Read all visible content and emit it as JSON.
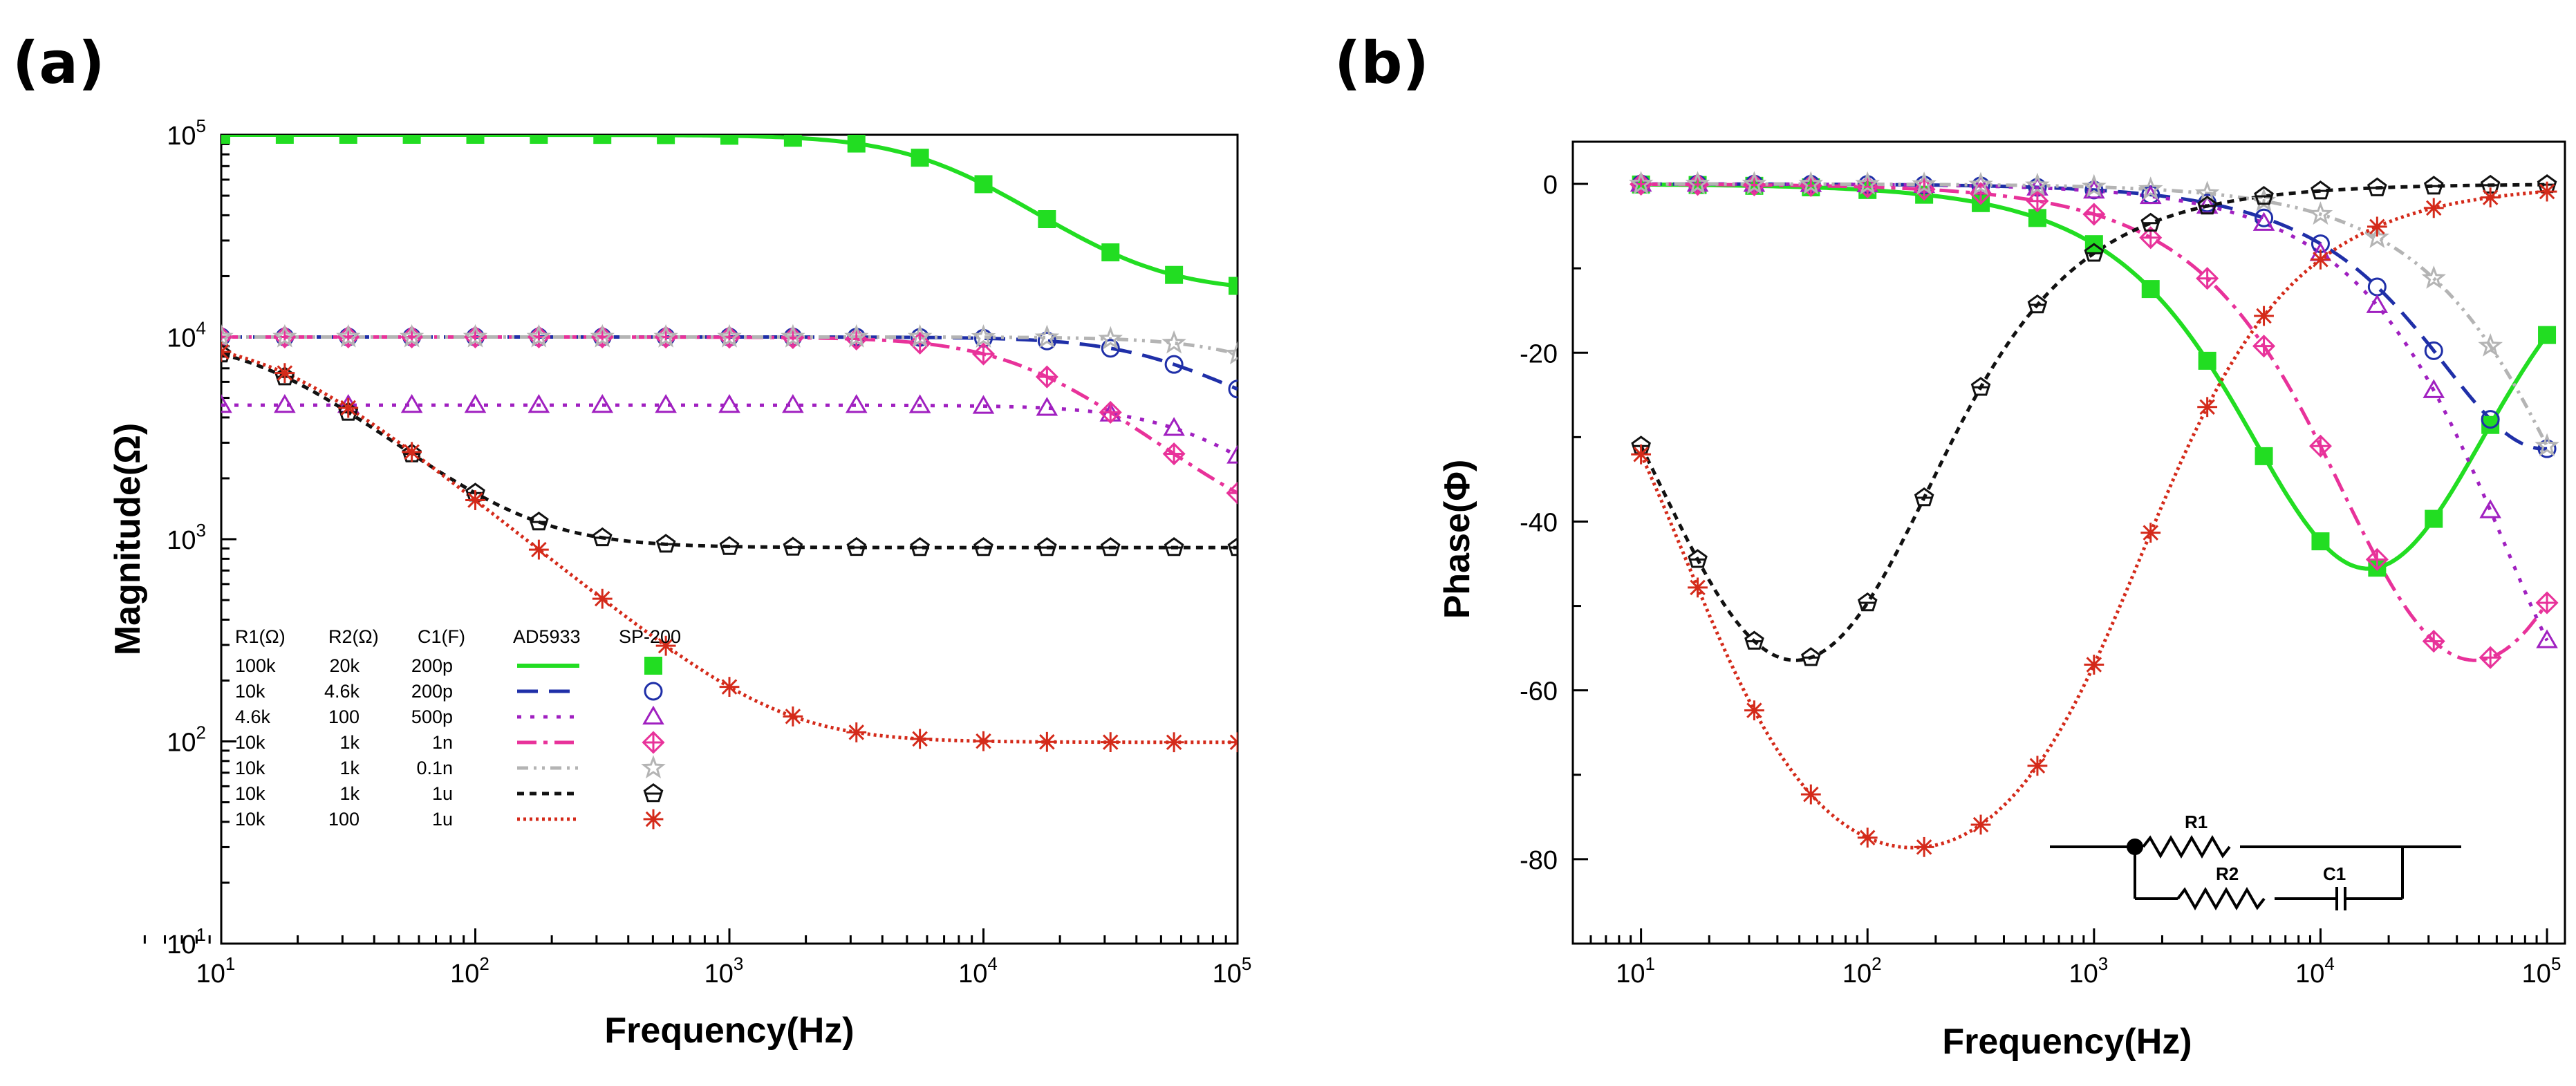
{
  "figure": {
    "label_a": "(a)",
    "label_b": "(b)"
  },
  "legend": {
    "headers": [
      "R1(Ω)",
      "R2(Ω)",
      "C1(F)",
      "AD5933",
      "SP-200"
    ],
    "rows": [
      {
        "r1": "100k",
        "r2": "20k",
        "c1": "200p"
      },
      {
        "r1": "10k",
        "r2": "4.6k",
        "c1": "200p"
      },
      {
        "r1": "4.6k",
        "r2": "100",
        "c1": "500p"
      },
      {
        "r1": "10k",
        "r2": "1k",
        "c1": "1n"
      },
      {
        "r1": "10k",
        "r2": "1k",
        "c1": "0.1n"
      },
      {
        "r1": "10k",
        "r2": "1k",
        "c1": "1u"
      },
      {
        "r1": "10k",
        "r2": "100",
        "c1": "1u"
      }
    ]
  },
  "circuit": {
    "r1": "R1",
    "r2": "R2",
    "c1": "C1"
  },
  "styles": [
    {
      "color": "#22dd22",
      "marker": "square"
    },
    {
      "color": "#1f2fa8",
      "marker": "circle"
    },
    {
      "color": "#a020c0",
      "marker": "triangle"
    },
    {
      "color": "#e8329a",
      "marker": "diamond-cross"
    },
    {
      "color": "#b4b4b4",
      "marker": "star"
    },
    {
      "color": "#111111",
      "marker": "pentagon"
    },
    {
      "color": "#d42a1a",
      "marker": "asterisk"
    }
  ],
  "chart_data": [
    {
      "type": "line",
      "panel": "(a)",
      "xlabel": "Frequency(Hz)",
      "ylabel": "Magnitude(Ω)",
      "xscale": "log",
      "yscale": "log",
      "xlim": [
        10,
        100000
      ],
      "ylim": [
        10,
        100000
      ],
      "xticks": [
        {
          "base": "10",
          "exp": "1"
        },
        {
          "base": "10",
          "exp": "2"
        },
        {
          "base": "10",
          "exp": "3"
        },
        {
          "base": "10",
          "exp": "4"
        },
        {
          "base": "10",
          "exp": "5"
        }
      ],
      "yticks": [
        {
          "base": "10",
          "exp": "1"
        },
        {
          "base": "10",
          "exp": "2"
        },
        {
          "base": "10",
          "exp": "3"
        },
        {
          "base": "10",
          "exp": "4"
        },
        {
          "base": "10",
          "exp": "5"
        }
      ],
      "series": [
        {
          "name": "100k / 20k / 200p",
          "curve": "parallel-rc",
          "R1": 100000,
          "R2": 20000,
          "C1": 2e-10
        },
        {
          "name": "10k / 4.6k / 200p",
          "curve": "parallel-rc",
          "R1": 10000,
          "R2": 4600,
          "C1": 2e-10
        },
        {
          "name": "4.6k / 100 / 500p",
          "curve": "parallel-rc",
          "R1": 4600,
          "R2": 100,
          "C1": 5e-10
        },
        {
          "name": "10k / 1k / 1n",
          "curve": "parallel-rc",
          "R1": 10000,
          "R2": 1000,
          "C1": 1e-09
        },
        {
          "name": "10k / 1k / 0.1n",
          "curve": "parallel-rc",
          "R1": 10000,
          "R2": 1000,
          "C1": 1e-10
        },
        {
          "name": "10k / 1k / 1u",
          "curve": "parallel-rc",
          "R1": 10000,
          "R2": 1000,
          "C1": 1e-06
        },
        {
          "name": "10k / 100 / 1u",
          "curve": "parallel-rc",
          "R1": 10000,
          "R2": 100,
          "C1": 1e-06
        }
      ]
    },
    {
      "type": "line",
      "panel": "(b)",
      "xlabel": "Frequency(Hz)",
      "ylabel": "Phase(Φ)",
      "xscale": "log",
      "yscale": "linear",
      "xlim": [
        5,
        120000
      ],
      "ylim": [
        -90,
        5
      ],
      "xticks": [
        {
          "base": "10",
          "exp": "1"
        },
        {
          "base": "10",
          "exp": "2"
        },
        {
          "base": "10",
          "exp": "3"
        },
        {
          "base": "10",
          "exp": "4"
        },
        {
          "base": "10",
          "exp": "5"
        }
      ],
      "yticks": [
        "0",
        "-20",
        "-40",
        "-60",
        "-80"
      ],
      "series": [
        {
          "name": "100k / 20k / 200p",
          "curve": "parallel-rc",
          "R1": 100000,
          "R2": 20000,
          "C1": 2e-10
        },
        {
          "name": "10k / 4.6k / 200p",
          "curve": "parallel-rc",
          "R1": 10000,
          "R2": 4600,
          "C1": 2e-10
        },
        {
          "name": "4.6k / 100 / 500p",
          "curve": "parallel-rc",
          "R1": 4600,
          "R2": 100,
          "C1": 5e-10
        },
        {
          "name": "10k / 1k / 1n",
          "curve": "parallel-rc",
          "R1": 10000,
          "R2": 1000,
          "C1": 1e-09
        },
        {
          "name": "10k / 1k / 0.1n",
          "curve": "parallel-rc",
          "R1": 10000,
          "R2": 1000,
          "C1": 1e-10
        },
        {
          "name": "10k / 1k / 1u",
          "curve": "parallel-rc",
          "R1": 10000,
          "R2": 1000,
          "C1": 1e-06
        },
        {
          "name": "10k / 100 / 1u",
          "curve": "parallel-rc",
          "R1": 10000,
          "R2": 100,
          "C1": 1e-06
        }
      ]
    }
  ]
}
